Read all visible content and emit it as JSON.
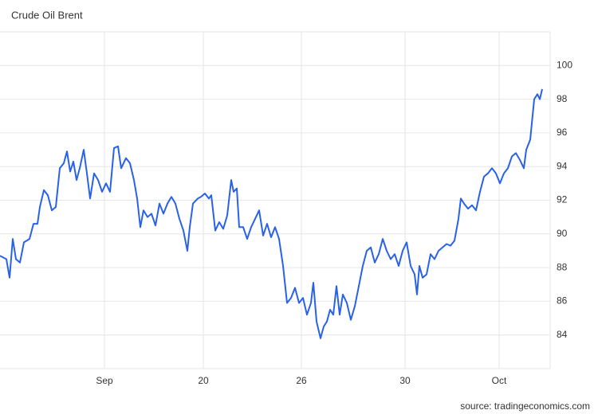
{
  "chart_data": {
    "type": "line",
    "title": "Crude Oil Brent",
    "source": "source: tradingeconomics.com",
    "grid": true,
    "y_axis_side": "right",
    "xlim": [
      0,
      690
    ],
    "ylim": [
      82,
      102
    ],
    "yticks": [
      84,
      86,
      88,
      90,
      92,
      94,
      96,
      98,
      100
    ],
    "xticks": [
      {
        "value": 131,
        "label": "Sep"
      },
      {
        "value": 255,
        "label": "20"
      },
      {
        "value": 378,
        "label": "26"
      },
      {
        "value": 508,
        "label": "30"
      },
      {
        "value": 626,
        "label": "Oct"
      }
    ],
    "x": [
      0,
      8,
      12,
      16,
      20,
      25,
      30,
      37,
      42,
      47,
      50,
      55,
      60,
      65,
      70,
      75,
      80,
      84,
      88,
      92,
      96,
      100,
      105,
      109,
      113,
      118,
      123,
      128,
      133,
      138,
      143,
      148,
      152,
      158,
      163,
      168,
      172,
      176,
      180,
      185,
      190,
      195,
      200,
      205,
      210,
      215,
      220,
      225,
      230,
      235,
      238,
      242,
      248,
      252,
      257,
      262,
      265,
      270,
      275,
      280,
      285,
      290,
      293,
      297,
      300,
      305,
      310,
      315,
      320,
      325,
      330,
      335,
      340,
      345,
      350,
      355,
      360,
      365,
      370,
      375,
      380,
      385,
      390,
      393,
      397,
      402,
      406,
      410,
      414,
      418,
      422,
      426,
      430,
      435,
      440,
      445,
      450,
      455,
      460,
      465,
      470,
      475,
      480,
      485,
      490,
      495,
      500,
      505,
      510,
      515,
      520,
      523,
      526,
      530,
      535,
      540,
      545,
      550,
      555,
      560,
      565,
      570,
      575,
      578,
      582,
      587,
      592,
      597,
      602,
      607,
      612,
      617,
      622,
      627,
      632,
      637,
      642,
      647,
      652,
      657,
      660,
      665,
      670,
      674,
      677,
      680
    ],
    "series": [
      {
        "name": "Crude Oil Brent",
        "color": "#2962e8",
        "values": [
          88.7,
          88.5,
          87.4,
          89.7,
          88.5,
          88.3,
          89.5,
          89.7,
          90.6,
          90.6,
          91.6,
          92.6,
          92.3,
          91.4,
          91.6,
          93.9,
          94.2,
          94.9,
          93.7,
          94.3,
          93.2,
          93.9,
          95.0,
          93.6,
          92.1,
          93.6,
          93.2,
          92.5,
          93.0,
          92.5,
          95.1,
          95.2,
          93.9,
          94.5,
          94.2,
          93.2,
          92.1,
          90.4,
          91.4,
          91.0,
          91.2,
          90.5,
          91.8,
          91.2,
          91.8,
          92.2,
          91.8,
          90.9,
          90.2,
          89.0,
          90.4,
          91.8,
          92.1,
          92.2,
          92.4,
          92.1,
          92.3,
          90.2,
          90.7,
          90.3,
          91.1,
          93.2,
          92.5,
          92.7,
          90.4,
          90.4,
          89.7,
          90.4,
          90.9,
          91.4,
          89.9,
          90.6,
          89.8,
          90.4,
          89.7,
          88.1,
          85.9,
          86.2,
          86.8,
          85.9,
          86.2,
          85.2,
          85.9,
          87.1,
          84.8,
          83.8,
          84.5,
          84.8,
          85.5,
          85.2,
          86.9,
          85.2,
          86.4,
          85.9,
          84.9,
          85.7,
          86.9,
          88.1,
          89.0,
          89.2,
          88.3,
          88.8,
          89.7,
          89.0,
          88.5,
          88.8,
          88.1,
          89.0,
          89.5,
          88.1,
          87.6,
          86.4,
          88.1,
          87.4,
          87.6,
          88.8,
          88.5,
          89.0,
          89.2,
          89.4,
          89.3,
          89.6,
          90.9,
          92.1,
          91.8,
          91.5,
          91.7,
          91.4,
          92.5,
          93.4,
          93.6,
          93.9,
          93.6,
          93.0,
          93.6,
          93.9,
          94.6,
          94.8,
          94.4,
          93.9,
          95.0,
          95.6,
          98.0,
          98.3,
          98.0,
          98.6
        ]
      }
    ]
  }
}
